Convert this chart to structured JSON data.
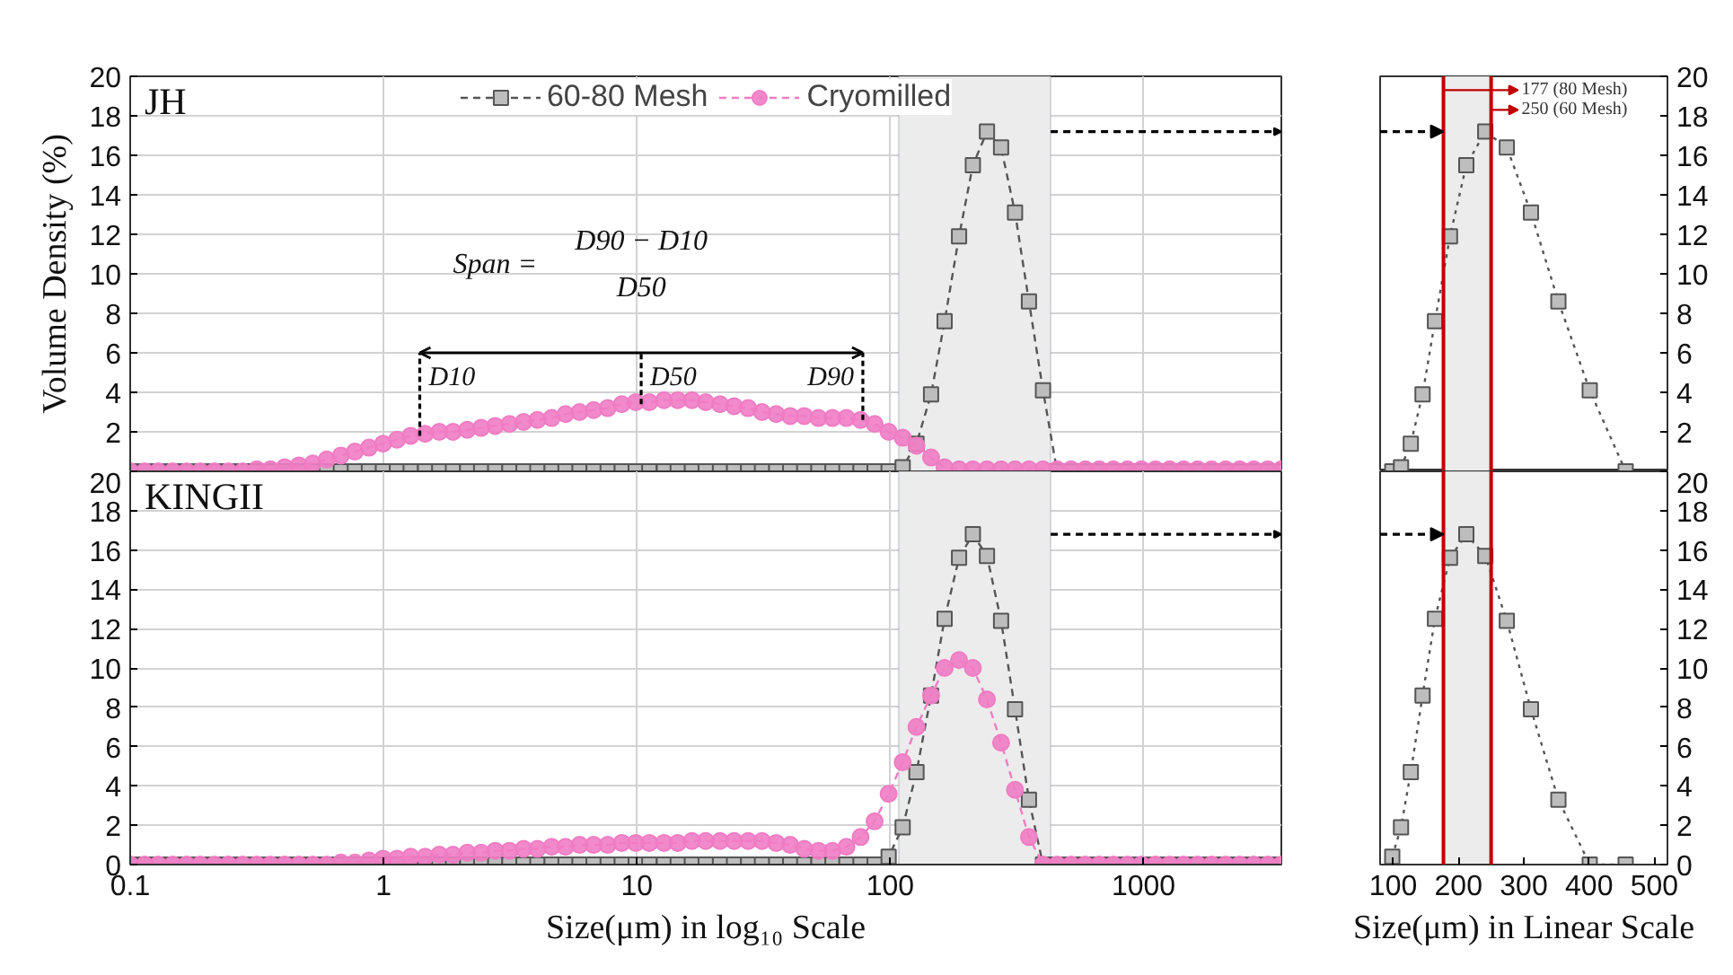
{
  "chart_data": [
    {
      "type": "line",
      "title": "JH",
      "ylabel": "Volume Density (%)",
      "log": "x",
      "xlim": [
        0.1,
        3500
      ],
      "ylim": [
        0,
        20
      ],
      "xticks": [
        0.1,
        1,
        10,
        100,
        1000
      ],
      "yticks": [
        2,
        4,
        6,
        8,
        10,
        12,
        14,
        16,
        18,
        20
      ],
      "tick_labels": "y",
      "grid": true,
      "legend": "top",
      "line_style": "dashed",
      "x": [
        0.1,
        0.114,
        0.129,
        0.147,
        0.167,
        0.189,
        0.215,
        0.244,
        0.278,
        0.316,
        0.358,
        0.407,
        0.463,
        0.526,
        0.597,
        0.679,
        0.771,
        0.876,
        0.995,
        1.13,
        1.28,
        1.46,
        1.66,
        1.88,
        2.14,
        2.43,
        2.76,
        3.14,
        3.57,
        4.05,
        4.61,
        5.23,
        5.94,
        6.75,
        7.67,
        8.72,
        9.9,
        11.2,
        12.8,
        14.5,
        16.5,
        18.7,
        21.3,
        24.2,
        27.5,
        31.2,
        35.5,
        40.3,
        45.8,
        52.1,
        59.2,
        67.2,
        76.4,
        86.8,
        98.6,
        112,
        127,
        145,
        164,
        187,
        212,
        241,
        274,
        311,
        353,
        401,
        456,
        518,
        589,
        669,
        760,
        864,
        981,
        1115,
        1267,
        1439,
        1635,
        1858,
        2110,
        2398,
        2724,
        3095,
        3500
      ],
      "series": [
        {
          "name": "60-80 Mesh",
          "color": "#bdbdbd",
          "marker": "square",
          "values": [
            0,
            0,
            0,
            0,
            0,
            0,
            0,
            0,
            0,
            0,
            0,
            0,
            0,
            0,
            0,
            0,
            0,
            0,
            0,
            0,
            0,
            0,
            0,
            0,
            0,
            0,
            0,
            0,
            0,
            0,
            0,
            0,
            0,
            0,
            0,
            0,
            0,
            0,
            0,
            0,
            0,
            0,
            0,
            0,
            0,
            0,
            0,
            0,
            0,
            0,
            0,
            0,
            0,
            0,
            0,
            0.2,
            1.4,
            3.9,
            7.6,
            11.9,
            15.5,
            17.2,
            16.4,
            13.1,
            8.6,
            4.1,
            0,
            0,
            0,
            0,
            0,
            0,
            0,
            0,
            0,
            0,
            0,
            0,
            0,
            0,
            0,
            0,
            0
          ]
        },
        {
          "name": "Cryomilled",
          "color": "#f07cc4",
          "marker": "circle",
          "values": [
            0,
            0,
            0,
            0,
            0,
            0,
            0,
            0,
            0,
            0.1,
            0.1,
            0.2,
            0.3,
            0.4,
            0.6,
            0.8,
            1.0,
            1.2,
            1.4,
            1.6,
            1.8,
            1.9,
            2.0,
            2.0,
            2.1,
            2.2,
            2.3,
            2.4,
            2.5,
            2.6,
            2.7,
            2.9,
            3.0,
            3.1,
            3.2,
            3.4,
            3.5,
            3.5,
            3.6,
            3.6,
            3.6,
            3.5,
            3.4,
            3.3,
            3.2,
            3.0,
            2.9,
            2.8,
            2.8,
            2.7,
            2.7,
            2.7,
            2.6,
            2.4,
            2.0,
            1.7,
            1.3,
            0.7,
            0.2,
            0.1,
            0.1,
            0.1,
            0.1,
            0.1,
            0.1,
            0.1,
            0.1,
            0.1,
            0.1,
            0.1,
            0.1,
            0.1,
            0.1,
            0.1,
            0.1,
            0.1,
            0.1,
            0.1,
            0.1,
            0.1,
            0.1,
            0.1,
            0.1
          ]
        }
      ],
      "bands": [
        {
          "axis": "x",
          "from": 108,
          "to": 430,
          "color": "#ececec"
        }
      ],
      "annotations": [
        "Span =",
        "D90 − D10",
        "D50",
        {
          "text": "D10",
          "x": 1.39,
          "y": 1.8
        },
        {
          "text": "D50",
          "x": 10.4,
          "y": 3.4
        },
        {
          "text": "D90",
          "x": 78,
          "y": 2.6
        }
      ]
    },
    {
      "type": "line",
      "xlim": [
        80,
        520
      ],
      "ylim": [
        0,
        20
      ],
      "xticks": [
        100,
        200,
        300,
        400,
        500
      ],
      "yticks": [
        2,
        4,
        6,
        8,
        10,
        12,
        14,
        16,
        18,
        20
      ],
      "tick_labels": "y",
      "marker": "square",
      "line_style": "dotted",
      "x": [
        98.6,
        112,
        127,
        145,
        164,
        187,
        212,
        241,
        274,
        311,
        353,
        401,
        456
      ],
      "series": [
        {
          "color": "#bdbdbd",
          "values": [
            0,
            0.2,
            1.4,
            3.9,
            7.6,
            11.9,
            15.5,
            17.2,
            16.4,
            13.1,
            8.6,
            4.1,
            0
          ]
        }
      ],
      "bands": [
        {
          "axis": "x",
          "from": 177,
          "to": 250,
          "color": "#ececec"
        }
      ],
      "ref_lines": [
        {
          "axis": "x",
          "value": 177,
          "label": "177 (80 Mesh)",
          "color": "#c00000"
        },
        {
          "axis": "x",
          "value": 250,
          "label": "250 (60 Mesh)",
          "color": "#c00000"
        }
      ]
    },
    {
      "type": "line",
      "title": "KINGII",
      "xlabel": "Size(μm) in log₁₀ Scale",
      "log": "x",
      "xlim": [
        0.1,
        3500
      ],
      "ylim": [
        0,
        20
      ],
      "xticks": [
        0.1,
        1,
        10,
        100,
        1000
      ],
      "yticks": [
        0,
        2,
        4,
        6,
        8,
        10,
        12,
        14,
        16,
        18,
        20
      ],
      "grid": true,
      "line_style": "dashed",
      "x": [
        0.1,
        0.114,
        0.129,
        0.147,
        0.167,
        0.189,
        0.215,
        0.244,
        0.278,
        0.316,
        0.358,
        0.407,
        0.463,
        0.526,
        0.597,
        0.679,
        0.771,
        0.876,
        0.995,
        1.13,
        1.28,
        1.46,
        1.66,
        1.88,
        2.14,
        2.43,
        2.76,
        3.14,
        3.57,
        4.05,
        4.61,
        5.23,
        5.94,
        6.75,
        7.67,
        8.72,
        9.9,
        11.2,
        12.8,
        14.5,
        16.5,
        18.7,
        21.3,
        24.2,
        27.5,
        31.2,
        35.5,
        40.3,
        45.8,
        52.1,
        59.2,
        67.2,
        76.4,
        86.8,
        98.6,
        112,
        127,
        145,
        164,
        187,
        212,
        241,
        274,
        311,
        353,
        401,
        456,
        518,
        589,
        669,
        760,
        864,
        981,
        1115,
        1267,
        1439,
        1635,
        1858,
        2110,
        2398,
        2724,
        3095,
        3500
      ],
      "series": [
        {
          "color": "#bdbdbd",
          "marker": "square",
          "values": [
            0,
            0,
            0,
            0,
            0,
            0,
            0,
            0,
            0,
            0,
            0,
            0,
            0,
            0,
            0,
            0,
            0,
            0,
            0,
            0,
            0,
            0,
            0,
            0,
            0,
            0,
            0,
            0,
            0,
            0,
            0,
            0,
            0,
            0,
            0,
            0,
            0,
            0,
            0,
            0,
            0,
            0,
            0,
            0,
            0,
            0,
            0,
            0,
            0,
            0,
            0,
            0,
            0,
            0,
            0.4,
            1.9,
            4.7,
            8.6,
            12.5,
            15.6,
            16.8,
            15.7,
            12.4,
            7.9,
            3.3,
            0,
            0,
            0,
            0,
            0,
            0,
            0,
            0,
            0,
            0,
            0,
            0,
            0,
            0,
            0,
            0,
            0,
            0
          ]
        },
        {
          "color": "#f07cc4",
          "marker": "circle",
          "values": [
            0,
            0,
            0,
            0,
            0,
            0,
            0,
            0,
            0,
            0,
            0,
            0,
            0,
            0,
            0,
            0.1,
            0.1,
            0.2,
            0.3,
            0.3,
            0.4,
            0.4,
            0.5,
            0.5,
            0.6,
            0.6,
            0.7,
            0.7,
            0.8,
            0.8,
            0.9,
            0.9,
            1.0,
            1.0,
            1.0,
            1.1,
            1.1,
            1.1,
            1.1,
            1.1,
            1.2,
            1.2,
            1.2,
            1.2,
            1.2,
            1.2,
            1.1,
            1.0,
            0.8,
            0.7,
            0.7,
            0.9,
            1.4,
            2.2,
            3.6,
            5.2,
            7.0,
            8.6,
            10.0,
            10.4,
            10.0,
            8.4,
            6.2,
            3.8,
            1.4,
            0,
            0,
            0,
            0,
            0,
            0,
            0,
            0,
            0,
            0,
            0,
            0,
            0,
            0,
            0,
            0,
            0,
            0
          ]
        }
      ],
      "bands": [
        {
          "axis": "x",
          "from": 108,
          "to": 430,
          "color": "#ececec"
        }
      ]
    },
    {
      "type": "line",
      "xlabel": "Size(μm) in Linear Scale",
      "xlim": [
        80,
        520
      ],
      "ylim": [
        0,
        20
      ],
      "xticks": [
        100,
        200,
        300,
        400,
        500
      ],
      "yticks": [
        0,
        2,
        4,
        6,
        8,
        10,
        12,
        14,
        16,
        18,
        20
      ],
      "marker": "square",
      "line_style": "dotted",
      "x": [
        98.6,
        112,
        127,
        145,
        164,
        187,
        212,
        241,
        274,
        311,
        353,
        401,
        456
      ],
      "series": [
        {
          "color": "#bdbdbd",
          "values": [
            0.4,
            1.9,
            4.7,
            8.6,
            12.5,
            15.6,
            16.8,
            15.7,
            12.4,
            7.9,
            3.3,
            0,
            0
          ]
        }
      ],
      "bands": [
        {
          "axis": "x",
          "from": 177,
          "to": 250,
          "color": "#ececec"
        }
      ],
      "ref_lines": [
        {
          "axis": "x",
          "value": 177,
          "color": "#c00000"
        },
        {
          "axis": "x",
          "value": 250,
          "color": "#c00000"
        }
      ]
    }
  ]
}
